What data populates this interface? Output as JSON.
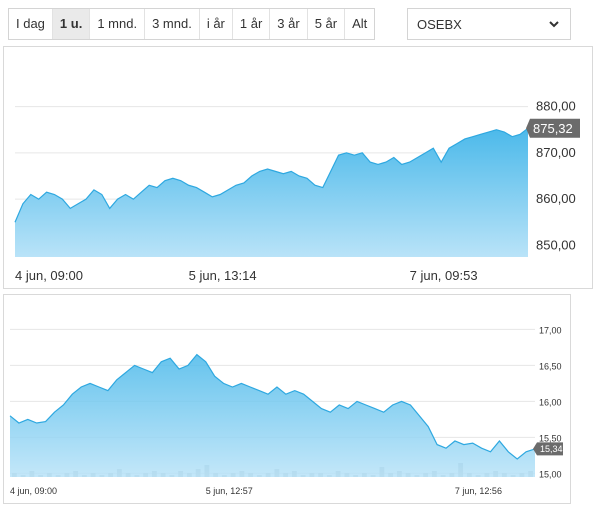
{
  "range_tabs": [
    {
      "label": "I dag",
      "active": false
    },
    {
      "label": "1 u.",
      "active": true
    },
    {
      "label": "1 mnd.",
      "active": false
    },
    {
      "label": "3 mnd.",
      "active": false
    },
    {
      "label": "i år",
      "active": false
    },
    {
      "label": "1 år",
      "active": false
    },
    {
      "label": "3 år",
      "active": false
    },
    {
      "label": "5 år",
      "active": false
    },
    {
      "label": "Alt",
      "active": false
    }
  ],
  "index_select": {
    "value": "OSEBX",
    "icon": "chevron-down-icon"
  },
  "colors": {
    "line": "#2ea8e0",
    "fill_top": "#4bb9ea",
    "fill_bottom": "#b9e3f8",
    "last_badge": "#6b6b6b",
    "volume": "#b9c2c8"
  },
  "chart_data": [
    {
      "type": "area",
      "title": "",
      "xlabel": "",
      "ylabel": "",
      "yaxis_position": "right",
      "ylim": [
        847.5,
        882.5
      ],
      "ticks": [
        850,
        860,
        870,
        880
      ],
      "tick_labels": [
        "850,00",
        "860,00",
        "870,00",
        "880,00"
      ],
      "x_tick_labels": [
        {
          "label": "4 jun, 09:00",
          "at": 0
        },
        {
          "label": "5 jun, 13:14",
          "at": 22
        },
        {
          "label": "7 jun, 09:53",
          "at": 50
        }
      ],
      "last_value_label": "875,32",
      "grid": true,
      "values": [
        855,
        859,
        861,
        860,
        861.5,
        861,
        860,
        858,
        859,
        860,
        862,
        861,
        858,
        860,
        861,
        860,
        861.5,
        863,
        862.5,
        864,
        864.5,
        864,
        863,
        862.5,
        861.5,
        860.5,
        861,
        862,
        863,
        863.5,
        865,
        866,
        866.5,
        866,
        865.5,
        866,
        865,
        864.5,
        863,
        862.5,
        866,
        869.5,
        870,
        869.5,
        870,
        868,
        867.5,
        868,
        869,
        867.5,
        868,
        869,
        870,
        871,
        868,
        871,
        872,
        873,
        873.5,
        874,
        874.5,
        875,
        874.5,
        873.5,
        874,
        875.32
      ]
    },
    {
      "type": "area",
      "title": "",
      "xlabel": "",
      "ylabel": "",
      "yaxis_position": "right",
      "ylim": [
        14.95,
        17.2
      ],
      "ticks": [
        15.0,
        15.5,
        16.0,
        16.5,
        17.0
      ],
      "tick_labels": [
        "15,00",
        "15,50",
        "16,00",
        "16,50",
        "17,00"
      ],
      "x_tick_labels": [
        {
          "label": "4 jun, 09:00",
          "at": 0
        },
        {
          "label": "5 jun, 12:57",
          "at": 22
        },
        {
          "label": "7 jun, 12:56",
          "at": 50
        }
      ],
      "last_value_label": "15,34",
      "grid": true,
      "values": [
        15.8,
        15.7,
        15.75,
        15.7,
        15.72,
        15.85,
        15.95,
        16.1,
        16.2,
        16.25,
        16.2,
        16.15,
        16.3,
        16.4,
        16.5,
        16.45,
        16.4,
        16.55,
        16.6,
        16.45,
        16.5,
        16.65,
        16.55,
        16.35,
        16.25,
        16.2,
        16.25,
        16.2,
        16.15,
        16.1,
        16.2,
        16.1,
        16.15,
        16.1,
        16.0,
        15.9,
        15.85,
        15.95,
        15.9,
        16.0,
        15.95,
        15.9,
        15.85,
        15.95,
        16.0,
        15.95,
        15.8,
        15.65,
        15.4,
        15.35,
        15.45,
        15.4,
        15.42,
        15.35,
        15.3,
        15.45,
        15.3,
        15.2,
        15.3,
        15.34
      ],
      "volume_values": [
        2,
        1,
        3,
        1,
        2,
        1,
        2,
        3,
        1,
        2,
        1,
        2,
        4,
        2,
        1,
        2,
        3,
        2,
        1,
        3,
        2,
        4,
        6,
        2,
        1,
        2,
        3,
        2,
        1,
        2,
        4,
        2,
        3,
        1,
        2,
        2,
        1,
        3,
        2,
        1,
        2,
        1,
        5,
        2,
        3,
        2,
        1,
        2,
        3,
        1,
        2,
        7,
        2,
        1,
        2,
        3,
        2,
        1,
        2,
        3
      ]
    }
  ]
}
